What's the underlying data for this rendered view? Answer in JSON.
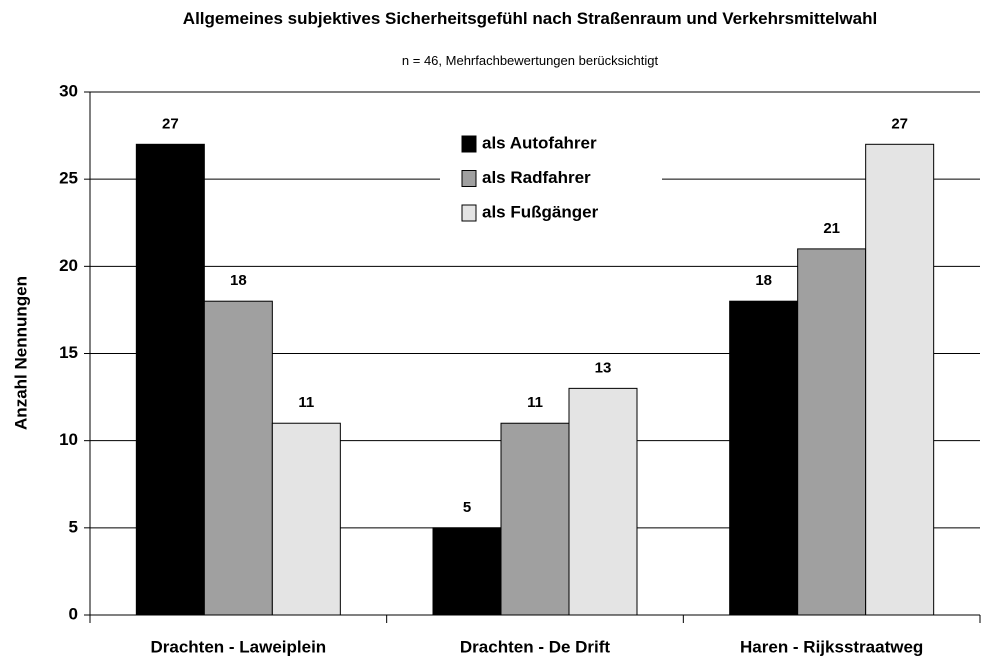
{
  "chart_data": {
    "type": "bar",
    "title": "Allgemeines subjektives Sicherheitsgefühl nach Straßenraum und Verkehrsmittelwahl",
    "subtitle": "n = 46, Mehrfachbewertungen berücksichtigt",
    "y_label": "Anzahl Nennungen",
    "categories": [
      "Drachten - Laweiplein",
      "Drachten - De Drift",
      "Haren - Rijksstraatweg"
    ],
    "series": [
      {
        "name": "als Autofahrer",
        "color": "#000000",
        "values": [
          27,
          5,
          18
        ]
      },
      {
        "name": "als Radfahrer",
        "color": "#a0a0a0",
        "values": [
          18,
          11,
          21
        ]
      },
      {
        "name": "als Fußgänger",
        "color": "#e4e4e4",
        "values": [
          11,
          13,
          27
        ]
      }
    ],
    "ylim": [
      0,
      30
    ],
    "yticks": [
      0,
      5,
      10,
      15,
      20,
      25,
      30
    ],
    "grid": true,
    "legend": "top"
  }
}
